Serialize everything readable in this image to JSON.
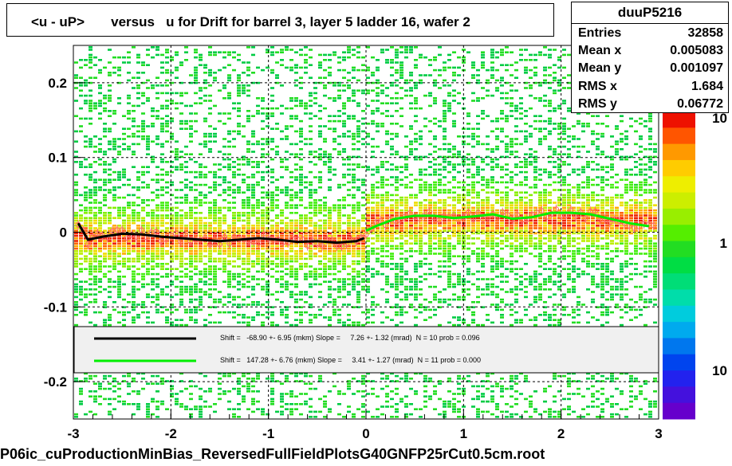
{
  "title": "<u - uP>       versus   u for Drift for barrel 3, layer 5 ladder 16, wafer 2",
  "stats": {
    "name": "duuP5216",
    "rows": [
      {
        "label": "Entries",
        "value": "32858"
      },
      {
        "label": "Mean x",
        "value": "0.005083"
      },
      {
        "label": "Mean y",
        "value": "0.001097"
      },
      {
        "label": "RMS x",
        "value": "1.684"
      },
      {
        "label": "RMS y",
        "value": "0.06772"
      }
    ]
  },
  "legend": {
    "lines": [
      {
        "color": "#000000",
        "text": "Shift =   -68.90 +- 6.95 (mkm) Slope =     7.26 +- 1.32 (mrad)  N = 10 prob = 0.096"
      },
      {
        "color": "#00ee00",
        "text": "Shift =   147.28 +- 6.76 (mkm) Slope =     3.41 +- 1.27 (mrad)  N = 11 prob = 0.000"
      }
    ]
  },
  "footer": "P06ic_cuProductionMinBias_ReversedFullFieldPlotsG40GNFP25rCut0.5cm.root",
  "colors": {
    "palette_low": "#6600cc",
    "palette_mid": "#00dd33",
    "palette_high": "#ff4400",
    "black_fit": "#000000",
    "green_fit": "#00ee00",
    "profile_points": "#ff6666"
  },
  "chart_data": {
    "type": "heatmap",
    "xlim": [
      -3,
      3
    ],
    "ylim": [
      -0.25,
      0.25
    ],
    "x_ticks": [
      "-3",
      "-2",
      "-1",
      "0",
      "1",
      "2",
      "3"
    ],
    "y_ticks": [
      "-0.2",
      "-0.1",
      "0",
      "0.1",
      "0.2"
    ],
    "z_scale": "log",
    "z_ticks": [
      "10",
      "1",
      "10"
    ],
    "grid": true,
    "black_fit": {
      "x": [
        -2.95,
        -2.85,
        -2.7,
        -2.5,
        -2.3,
        -2.1,
        -1.9,
        -1.7,
        -1.5,
        -1.3,
        -1.1,
        -0.9,
        -0.7,
        -0.5,
        -0.3,
        -0.1,
        -0.02
      ],
      "y": [
        0.012,
        -0.01,
        -0.006,
        -0.002,
        -0.003,
        -0.006,
        -0.008,
        -0.01,
        -0.012,
        -0.01,
        -0.008,
        -0.01,
        -0.013,
        -0.012,
        -0.014,
        -0.012,
        -0.008
      ]
    },
    "green_fit": {
      "x": [
        0.0,
        0.1,
        0.3,
        0.5,
        0.7,
        0.9,
        1.1,
        1.3,
        1.5,
        1.7,
        1.9,
        2.1,
        2.3,
        2.5,
        2.7,
        2.9
      ],
      "y": [
        0.002,
        0.008,
        0.018,
        0.022,
        0.022,
        0.019,
        0.021,
        0.024,
        0.018,
        0.02,
        0.026,
        0.026,
        0.024,
        0.018,
        0.012,
        0.008
      ]
    }
  }
}
